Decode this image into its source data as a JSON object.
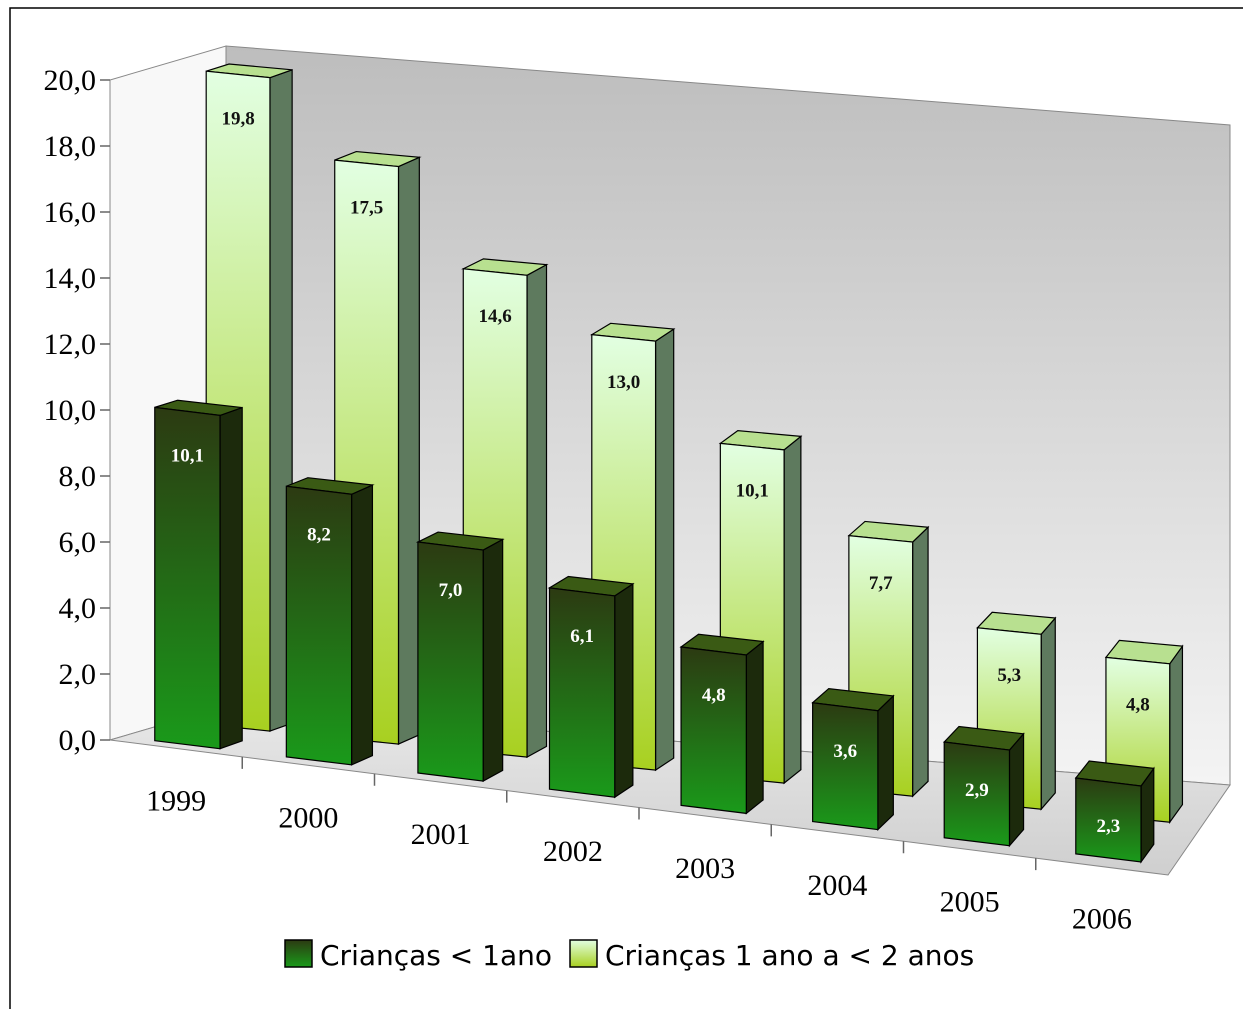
{
  "chart_data": {
    "type": "bar3d",
    "categories": [
      "1999",
      "2000",
      "2001",
      "2002",
      "2003",
      "2004",
      "2005",
      "2006"
    ],
    "series": [
      {
        "name": "Crianças < 1ano",
        "color": "#1a9a1a",
        "values": [
          10.1,
          8.2,
          7.0,
          6.1,
          4.8,
          3.6,
          2.9,
          2.3
        ],
        "value_labels": [
          "10,1",
          "8,2",
          "7,0",
          "6,1",
          "4,8",
          "3,6",
          "2,9",
          "2,3"
        ]
      },
      {
        "name": "Crianças 1 ano a < 2 anos",
        "color": "#ccffcc",
        "values": [
          19.8,
          17.5,
          14.6,
          13.0,
          10.1,
          7.7,
          5.3,
          4.8
        ],
        "value_labels": [
          "19,8",
          "17,5",
          "14,6",
          "13,0",
          "10,1",
          "7,7",
          "5,3",
          "4,8"
        ]
      }
    ],
    "ylim": [
      0,
      20
    ],
    "yticks": [
      {
        "value": 0,
        "label": "0,0"
      },
      {
        "value": 2,
        "label": "2,0"
      },
      {
        "value": 4,
        "label": "4,0"
      },
      {
        "value": 6,
        "label": "6,0"
      },
      {
        "value": 8,
        "label": "8,0"
      },
      {
        "value": 10,
        "label": "10,0"
      },
      {
        "value": 12,
        "label": "12,0"
      },
      {
        "value": 14,
        "label": "14,0"
      },
      {
        "value": 16,
        "label": "16,0"
      },
      {
        "value": 18,
        "label": "18,0"
      },
      {
        "value": 20,
        "label": "20,0"
      }
    ],
    "legend": "bottom"
  }
}
